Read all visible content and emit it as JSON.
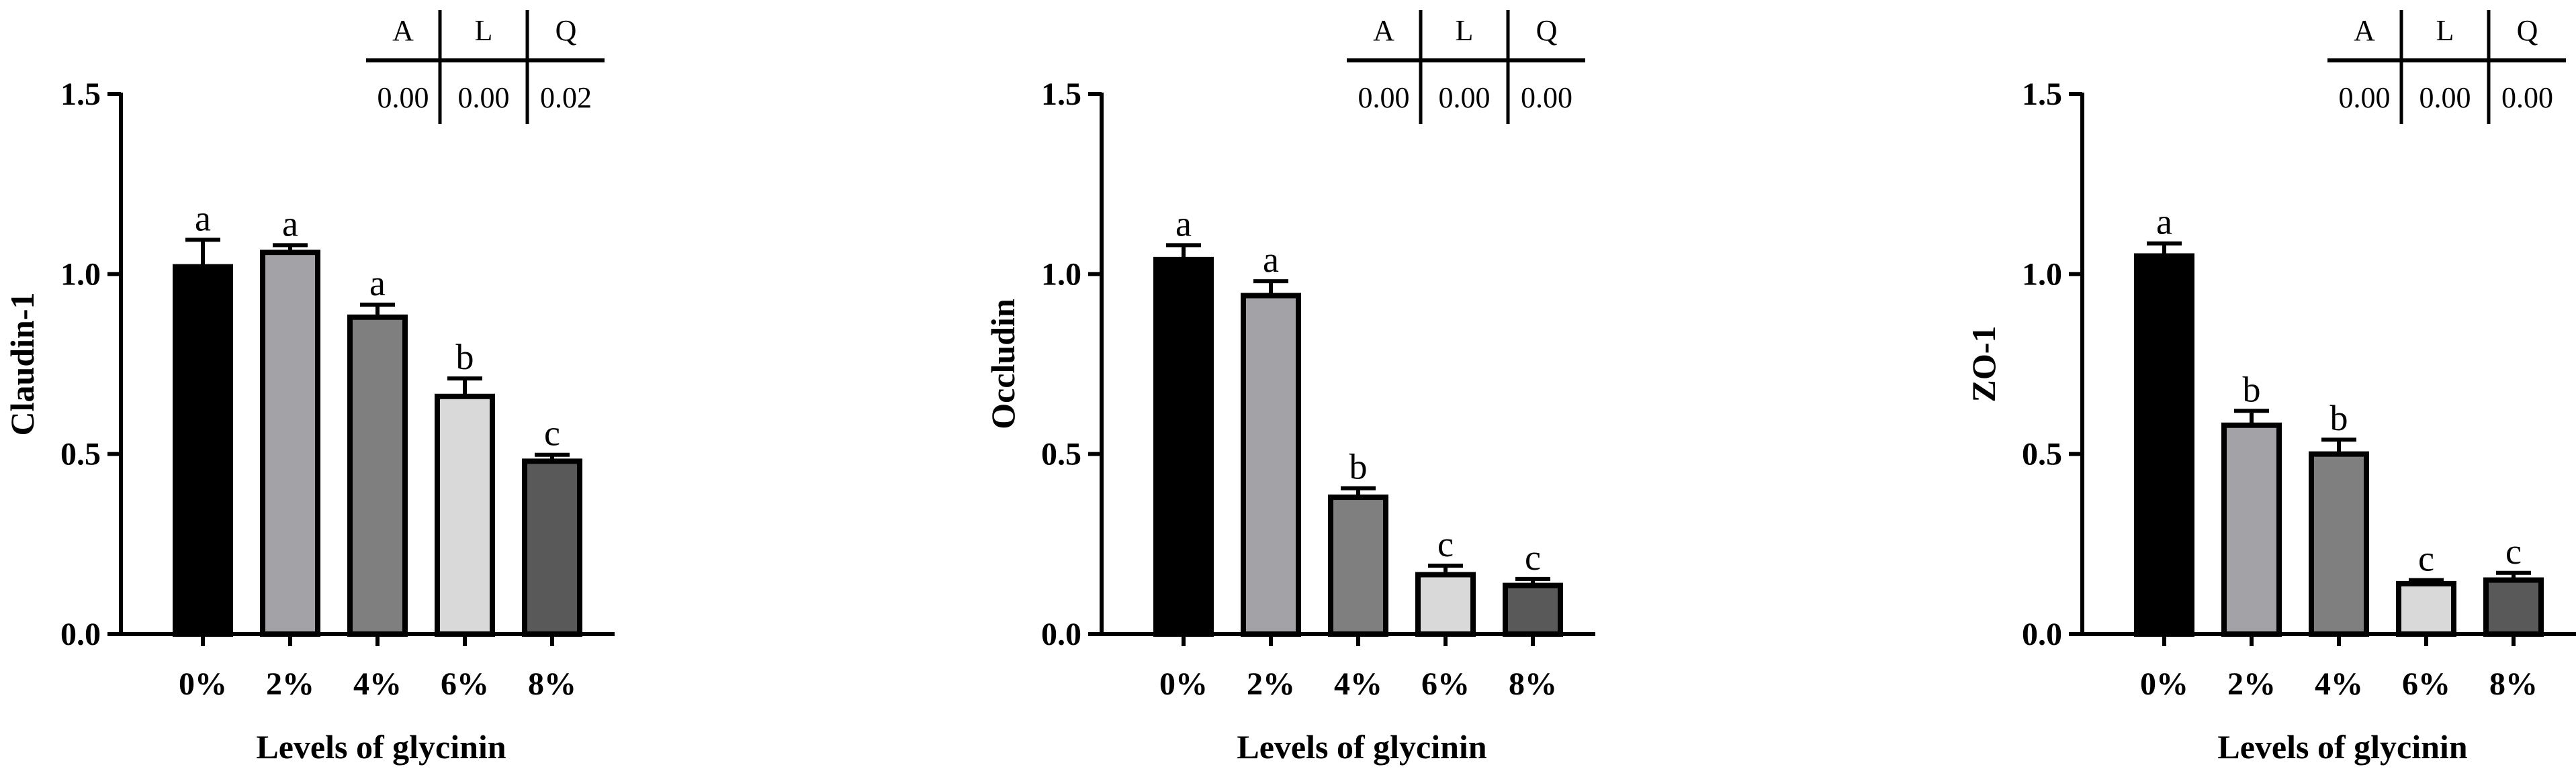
{
  "chart_data": [
    {
      "type": "bar",
      "categories": [
        "0%",
        "2%",
        "4%",
        "6%",
        "8%"
      ],
      "values": [
        1.02,
        1.06,
        0.88,
        0.66,
        0.48
      ],
      "errors": [
        0.075,
        0.02,
        0.035,
        0.05,
        0.018
      ],
      "letters": [
        "a",
        "a",
        "a",
        "b",
        "c"
      ],
      "bar_colors": [
        "#000000",
        "#a3a3a7",
        "#7f7f7f",
        "#d9d9d9",
        "#595959"
      ],
      "xlabel": "Levels of glycinin",
      "ylabel": "Claudin-1",
      "ylim": [
        0,
        1.5
      ],
      "yticks": [
        "0.0",
        "0.5",
        "1.0",
        "1.5"
      ],
      "stats": {
        "headers": [
          "A",
          "L",
          "Q"
        ],
        "values": [
          "0.00",
          "0.00",
          "0.02"
        ]
      }
    },
    {
      "type": "bar",
      "categories": [
        "0%",
        "2%",
        "4%",
        "6%",
        "8%"
      ],
      "values": [
        1.04,
        0.94,
        0.38,
        0.165,
        0.135
      ],
      "errors": [
        0.04,
        0.04,
        0.025,
        0.025,
        0.018
      ],
      "letters": [
        "a",
        "a",
        "b",
        "c",
        "c"
      ],
      "bar_colors": [
        "#000000",
        "#a3a3a7",
        "#7f7f7f",
        "#d9d9d9",
        "#595959"
      ],
      "xlabel": "Levels of glycinin",
      "ylabel": "Occludin",
      "ylim": [
        0,
        1.5
      ],
      "yticks": [
        "0.0",
        "0.5",
        "1.0",
        "1.5"
      ],
      "stats": {
        "headers": [
          "A",
          "L",
          "Q"
        ],
        "values": [
          "0.00",
          "0.00",
          "0.00"
        ]
      }
    },
    {
      "type": "bar",
      "categories": [
        "0%",
        "2%",
        "4%",
        "6%",
        "8%"
      ],
      "values": [
        1.05,
        0.58,
        0.5,
        0.14,
        0.15
      ],
      "errors": [
        0.035,
        0.04,
        0.04,
        0.01,
        0.02
      ],
      "letters": [
        "a",
        "b",
        "b",
        "c",
        "c"
      ],
      "bar_colors": [
        "#000000",
        "#a3a3a7",
        "#7f7f7f",
        "#d9d9d9",
        "#595959"
      ],
      "xlabel": "Levels of glycinin",
      "ylabel": "ZO-1",
      "ylim": [
        0,
        1.5
      ],
      "yticks": [
        "0.0",
        "0.5",
        "1.0",
        "1.5"
      ],
      "stats": {
        "headers": [
          "A",
          "L",
          "Q"
        ],
        "values": [
          "0.00",
          "0.00",
          "0.00"
        ]
      }
    }
  ]
}
